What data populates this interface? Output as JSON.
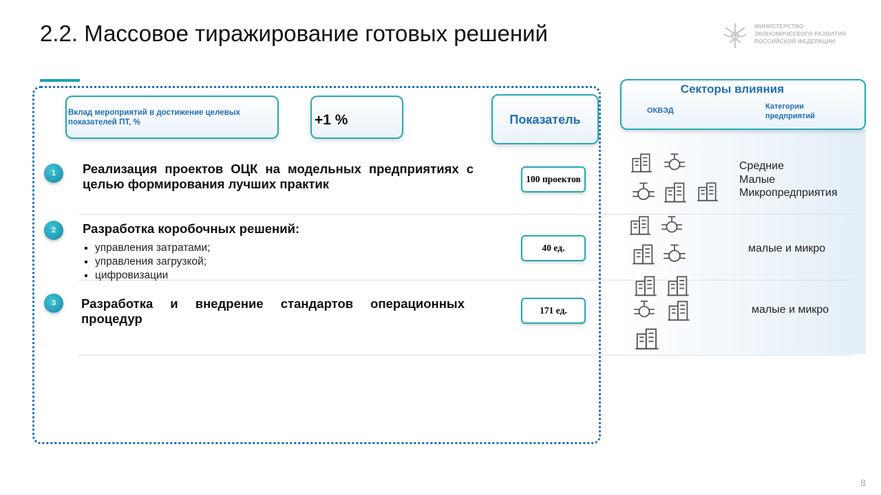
{
  "header": {
    "title": "2.2. Массовое тиражирование готовых решений",
    "ministry": [
      "МИНИСТЕРСТВО",
      "ЭКОНОМИЧЕСКОГО РАЗВИТИЯ",
      "РОССИЙСКОЙ ФЕДЕРАЦИИ"
    ]
  },
  "summary": {
    "contribution_label": "Вклад мероприятий в достижение целевых показателей ПТ, %",
    "contribution_value": "+1 %",
    "indicator_header": "Показатель"
  },
  "sectors": {
    "title": "Секторы влияния",
    "okved": "ОКВЭД",
    "categories_header": "Категории предприятий"
  },
  "items": [
    {
      "number": "1",
      "text": "Реализация проектов ОЦК на модельных предприятиях с целью формирования лучших практик",
      "indicator": "100 проектов",
      "categories": [
        "Средние",
        "Малые",
        "Микропредприятия"
      ]
    },
    {
      "number": "2",
      "text": "Разработка коробочных решений:",
      "bullets": [
        "управления затратами;",
        "управления загрузкой;",
        "цифровизации"
      ],
      "indicator": "40 ед.",
      "categories": [
        "малые и микро"
      ]
    },
    {
      "number": "3",
      "text": "Разработка и внедрение стандартов операционных процедур",
      "indicator": "171 ед.",
      "categories": [
        "малые и микро"
      ]
    }
  ],
  "page_number": "8"
}
